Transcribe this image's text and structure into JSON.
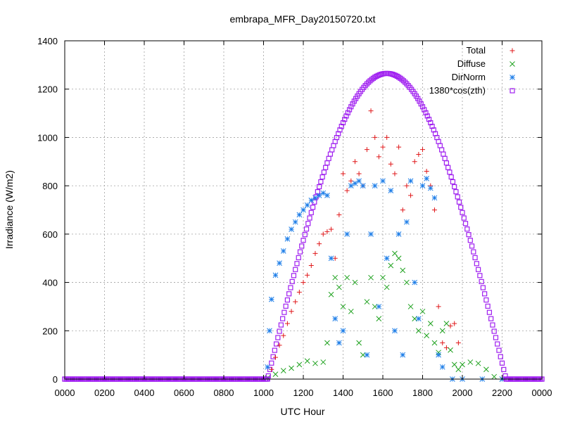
{
  "chart_data": {
    "type": "scatter",
    "title": "embrapa_MFR_Day20150720.txt",
    "xlabel": "UTC Hour",
    "ylabel": "Irradiance (W/m2)",
    "xlim": [
      0,
      2400
    ],
    "ylim": [
      0,
      1400
    ],
    "x_ticks": [
      "0000",
      "0200",
      "0400",
      "0600",
      "0800",
      "1000",
      "1200",
      "1400",
      "1600",
      "1800",
      "2000",
      "2200",
      "0000"
    ],
    "y_ticks": [
      "0",
      "200",
      "400",
      "600",
      "800",
      "1000",
      "1200",
      "1400"
    ],
    "grid": true,
    "legend_position": "top-right",
    "series": [
      {
        "name": "Total",
        "marker": "plus",
        "color": "#e0191b",
        "x": [
          1040,
          1060,
          1080,
          1100,
          1120,
          1140,
          1160,
          1180,
          1200,
          1220,
          1240,
          1260,
          1280,
          1300,
          1320,
          1340,
          1360,
          1380,
          1400,
          1420,
          1440,
          1460,
          1480,
          1500,
          1520,
          1540,
          1560,
          1580,
          1600,
          1620,
          1640,
          1660,
          1680,
          1700,
          1720,
          1740,
          1760,
          1780,
          1800,
          1820,
          1840,
          1860,
          1880,
          1900,
          1920,
          1940,
          1960,
          1980
        ],
        "y": [
          40,
          90,
          140,
          180,
          230,
          280,
          320,
          360,
          400,
          430,
          470,
          520,
          560,
          600,
          610,
          620,
          500,
          680,
          850,
          780,
          820,
          900,
          850,
          800,
          950,
          1110,
          1000,
          920,
          960,
          1000,
          890,
          850,
          960,
          700,
          800,
          760,
          900,
          930,
          950,
          860,
          800,
          700,
          300,
          150,
          130,
          220,
          230,
          150
        ]
      },
      {
        "name": "Diffuse",
        "marker": "cross",
        "color": "#1ea11e",
        "x": [
          1020,
          1060,
          1100,
          1140,
          1180,
          1220,
          1260,
          1300,
          1320,
          1340,
          1360,
          1380,
          1400,
          1420,
          1440,
          1460,
          1480,
          1500,
          1520,
          1540,
          1560,
          1580,
          1600,
          1620,
          1640,
          1660,
          1680,
          1700,
          1720,
          1740,
          1760,
          1780,
          1800,
          1820,
          1840,
          1860,
          1880,
          1900,
          1920,
          1940,
          1960,
          1980,
          2000,
          2040,
          2080,
          2120,
          2160,
          2200
        ],
        "y": [
          5,
          20,
          35,
          45,
          60,
          75,
          65,
          70,
          150,
          350,
          420,
          380,
          300,
          420,
          280,
          400,
          150,
          100,
          320,
          420,
          300,
          250,
          420,
          380,
          470,
          520,
          500,
          450,
          400,
          300,
          250,
          200,
          280,
          180,
          230,
          150,
          110,
          200,
          230,
          120,
          60,
          40,
          60,
          70,
          65,
          40,
          10,
          0
        ]
      },
      {
        "name": "DirNorm",
        "marker": "star",
        "color": "#1e7ee8",
        "x": [
          1020,
          1030,
          1040,
          1060,
          1080,
          1100,
          1120,
          1140,
          1160,
          1180,
          1200,
          1220,
          1240,
          1260,
          1280,
          1300,
          1320,
          1340,
          1360,
          1380,
          1400,
          1420,
          1440,
          1460,
          1480,
          1500,
          1520,
          1540,
          1560,
          1580,
          1600,
          1620,
          1640,
          1660,
          1680,
          1700,
          1720,
          1740,
          1760,
          1780,
          1800,
          1820,
          1840,
          1860,
          1880,
          1900,
          1950,
          2000,
          2100,
          2200
        ],
        "y": [
          50,
          200,
          330,
          430,
          480,
          530,
          580,
          620,
          650,
          680,
          700,
          720,
          740,
          750,
          760,
          770,
          760,
          500,
          250,
          150,
          200,
          600,
          800,
          810,
          820,
          800,
          100,
          600,
          800,
          300,
          820,
          500,
          780,
          200,
          600,
          100,
          650,
          820,
          400,
          250,
          800,
          830,
          790,
          750,
          100,
          50,
          0,
          0,
          0,
          0
        ]
      },
      {
        "name": "1380*cos(zth)",
        "marker": "square",
        "color": "#a020f0",
        "formula_peak": 1265,
        "rise_x": 1020,
        "noon_x": 1620,
        "set_x": 2220
      }
    ]
  }
}
